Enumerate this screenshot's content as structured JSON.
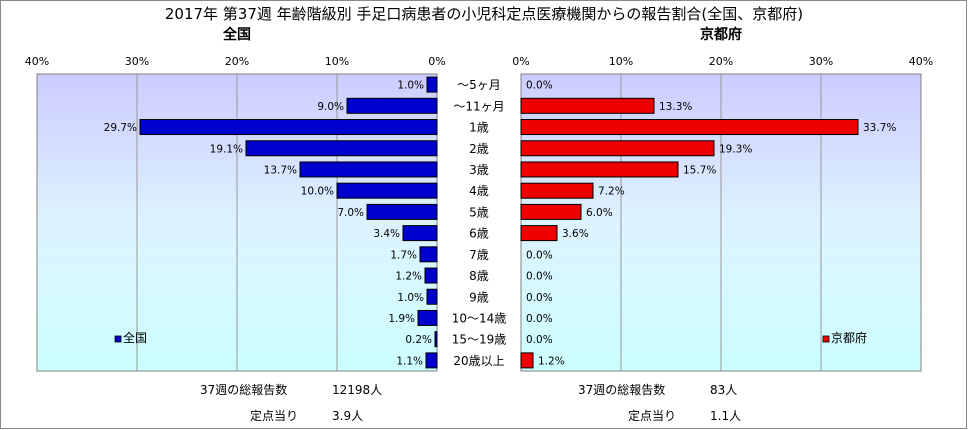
{
  "chart_data": {
    "type": "bar",
    "title": "2017年 第37週 年齢階級別 手足口病患者の小児科定点医療機関からの報告割合(全国、京都府)",
    "categories": [
      "～5ヶ月",
      "～11ヶ月",
      "1歳",
      "2歳",
      "3歳",
      "4歳",
      "5歳",
      "6歳",
      "7歳",
      "8歳",
      "9歳",
      "10～14歳",
      "15～19歳",
      "20歳以上"
    ],
    "panels": [
      {
        "heading": "全国",
        "legend": "全国",
        "color": "#0000cc",
        "direction": "left",
        "ticks": [
          "40%",
          "30%",
          "20%",
          "10%",
          "0%"
        ],
        "xlim": [
          0,
          40
        ],
        "values": [
          1.0,
          9.0,
          29.7,
          19.1,
          13.7,
          10.0,
          7.0,
          3.4,
          1.7,
          1.2,
          1.0,
          1.9,
          0.2,
          1.1
        ],
        "labels": [
          "1.0%",
          "9.0%",
          "29.7%",
          "19.1%",
          "13.7%",
          "10.0%",
          "7.0%",
          "3.4%",
          "1.7%",
          "1.2%",
          "1.0%",
          "1.9%",
          "0.2%",
          "1.1%"
        ],
        "footer": {
          "reports_label": "37週の総報告数",
          "reports_value": "12198人",
          "per_label": "定点当り",
          "per_value": "3.9人"
        }
      },
      {
        "heading": "京都府",
        "legend": "京都府",
        "color": "#ee0000",
        "direction": "right",
        "ticks": [
          "0%",
          "10%",
          "20%",
          "30%",
          "40%"
        ],
        "xlim": [
          0,
          40
        ],
        "values": [
          0.0,
          13.3,
          33.7,
          19.3,
          15.7,
          7.2,
          6.0,
          3.6,
          0.0,
          0.0,
          0.0,
          0.0,
          0.0,
          1.2
        ],
        "labels": [
          "0.0%",
          "13.3%",
          "33.7%",
          "19.3%",
          "15.7%",
          "7.2%",
          "6.0%",
          "3.6%",
          "0.0%",
          "0.0%",
          "0.0%",
          "0.0%",
          "0.0%",
          "1.2%"
        ],
        "footer": {
          "reports_label": "37週の総報告数",
          "reports_value": "83人",
          "per_label": "定点当り",
          "per_value": "1.1人"
        }
      }
    ],
    "grid": true
  }
}
